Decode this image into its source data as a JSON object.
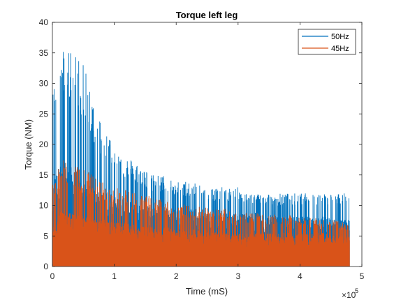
{
  "chart_data": {
    "type": "line",
    "title": "Torque left leg",
    "xlabel": "Time (mS)",
    "ylabel": "Torque (NM)",
    "x_exponent_label": "×10",
    "x_exponent_power": "5",
    "xlim": [
      0,
      5
    ],
    "ylim": [
      0,
      40
    ],
    "x_ticks": [
      "0",
      "1",
      "2",
      "3",
      "4",
      "5"
    ],
    "y_ticks": [
      "0",
      "5",
      "10",
      "15",
      "20",
      "25",
      "30",
      "35",
      "40"
    ],
    "x_tick_values": [
      0,
      1,
      2,
      3,
      4,
      5
    ],
    "y_tick_values": [
      0,
      5,
      10,
      15,
      20,
      25,
      30,
      35,
      40
    ],
    "grid": false,
    "legend_position": "top-right",
    "x_end": 4.8,
    "series": [
      {
        "name": "50Hz",
        "color": "#0072BD",
        "envelope_x": [
          0,
          0.05,
          0.1,
          0.2,
          0.3,
          0.4,
          0.5,
          0.6,
          0.7,
          0.8,
          0.9,
          1.0,
          1.2,
          1.4,
          1.6,
          1.8,
          2.0,
          2.2,
          2.4,
          2.6,
          2.8,
          3.0,
          3.2,
          3.4,
          3.6,
          3.8,
          4.0,
          4.2,
          4.4,
          4.6,
          4.8
        ],
        "envelope_max": [
          28,
          33,
          35,
          36,
          36,
          35,
          33,
          30,
          26,
          24,
          22,
          20,
          18,
          17,
          15,
          15,
          14,
          14,
          14,
          13,
          13,
          13,
          12,
          12,
          12,
          12,
          12,
          12,
          12,
          12,
          12
        ],
        "baseline_max": [
          12,
          14,
          15,
          15.5,
          15,
          14,
          13,
          12,
          11.5,
          11,
          11,
          10.5,
          10,
          9.5,
          9,
          9,
          8.5,
          8.5,
          8.5,
          8,
          8,
          8,
          8,
          8,
          7.5,
          7.5,
          7.5,
          7.5,
          7.5,
          7,
          7
        ]
      },
      {
        "name": "45Hz",
        "color": "#D95319",
        "envelope_x": [
          0,
          0.05,
          0.1,
          0.2,
          0.3,
          0.4,
          0.5,
          0.6,
          0.7,
          0.8,
          0.9,
          1.0,
          1.2,
          1.4,
          1.6,
          1.8,
          2.0,
          2.2,
          2.4,
          2.6,
          2.8,
          3.0,
          3.2,
          3.4,
          3.6,
          3.8,
          4.0,
          4.2,
          4.4,
          4.6,
          4.8
        ],
        "envelope_max": [
          14,
          16,
          17,
          17.5,
          17,
          16.5,
          16,
          15.5,
          14.5,
          14,
          13.5,
          13,
          12.5,
          12,
          11.5,
          11,
          10.5,
          10,
          10,
          9.5,
          9.5,
          9,
          9,
          8.5,
          8.5,
          8.5,
          8,
          8,
          8,
          7.5,
          7
        ],
        "baseline_max": [
          6,
          7,
          8,
          8.5,
          8,
          8,
          7.5,
          7.5,
          7,
          7,
          7,
          6.5,
          6.5,
          6,
          6,
          6,
          5.5,
          5.5,
          5.5,
          5.5,
          5,
          5,
          5,
          5,
          5,
          5,
          5,
          5,
          5,
          4.5,
          4.5
        ]
      }
    ]
  }
}
